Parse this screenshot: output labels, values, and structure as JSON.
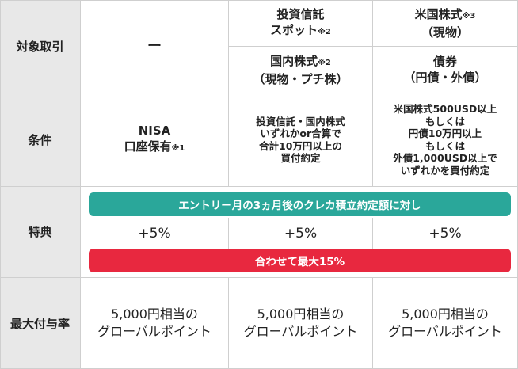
{
  "rows": {
    "target": "対象取引",
    "condition": "条件",
    "benefit": "特典",
    "max_rate": "最大付与率"
  },
  "target": {
    "col1": "ー",
    "col2_top_line1": "投資信託",
    "col2_top_line2": "スポット",
    "col2_top_note": "※2",
    "col3_top_line1": "米国株式",
    "col3_top_note": "※3",
    "col3_top_line2": "（現物）",
    "col2_bottom_line1": "国内株式",
    "col2_bottom_note": "※2",
    "col2_bottom_line2": "（現物・プチ株）",
    "col3_bottom_line1": "債券",
    "col3_bottom_line2": "（円債・外債）"
  },
  "condition": {
    "col1_line1": "NISA",
    "col1_line2": "口座保有",
    "col1_note": "※1",
    "col2_lines": [
      "投資信託・国内株式",
      "いずれかor合算で",
      "合計10万円以上の",
      "買付約定"
    ],
    "col3_lines": [
      "米国株式500USD以上",
      "もしくは",
      "円債10万円以上",
      "もしくは",
      "外債1,000USD以上で",
      "いずれかを買付約定"
    ]
  },
  "benefit": {
    "top_bar": "エントリー月の3ヵ月後のクレカ積立約定額に対し",
    "pct1": "+5%",
    "pct2": "+5%",
    "pct3": "+5%",
    "bottom_bar": "合わせて最大15%",
    "colors": {
      "teal": "#2aa79a",
      "red": "#e8283f"
    }
  },
  "max_rate": {
    "col1_line1": "5,000円相当の",
    "col1_line2": "グローバルポイント",
    "col2_line1": "5,000円相当の",
    "col2_line2": "グローバルポイント",
    "col3_line1": "5,000円相当の",
    "col3_line2": "グローバルポイント"
  }
}
